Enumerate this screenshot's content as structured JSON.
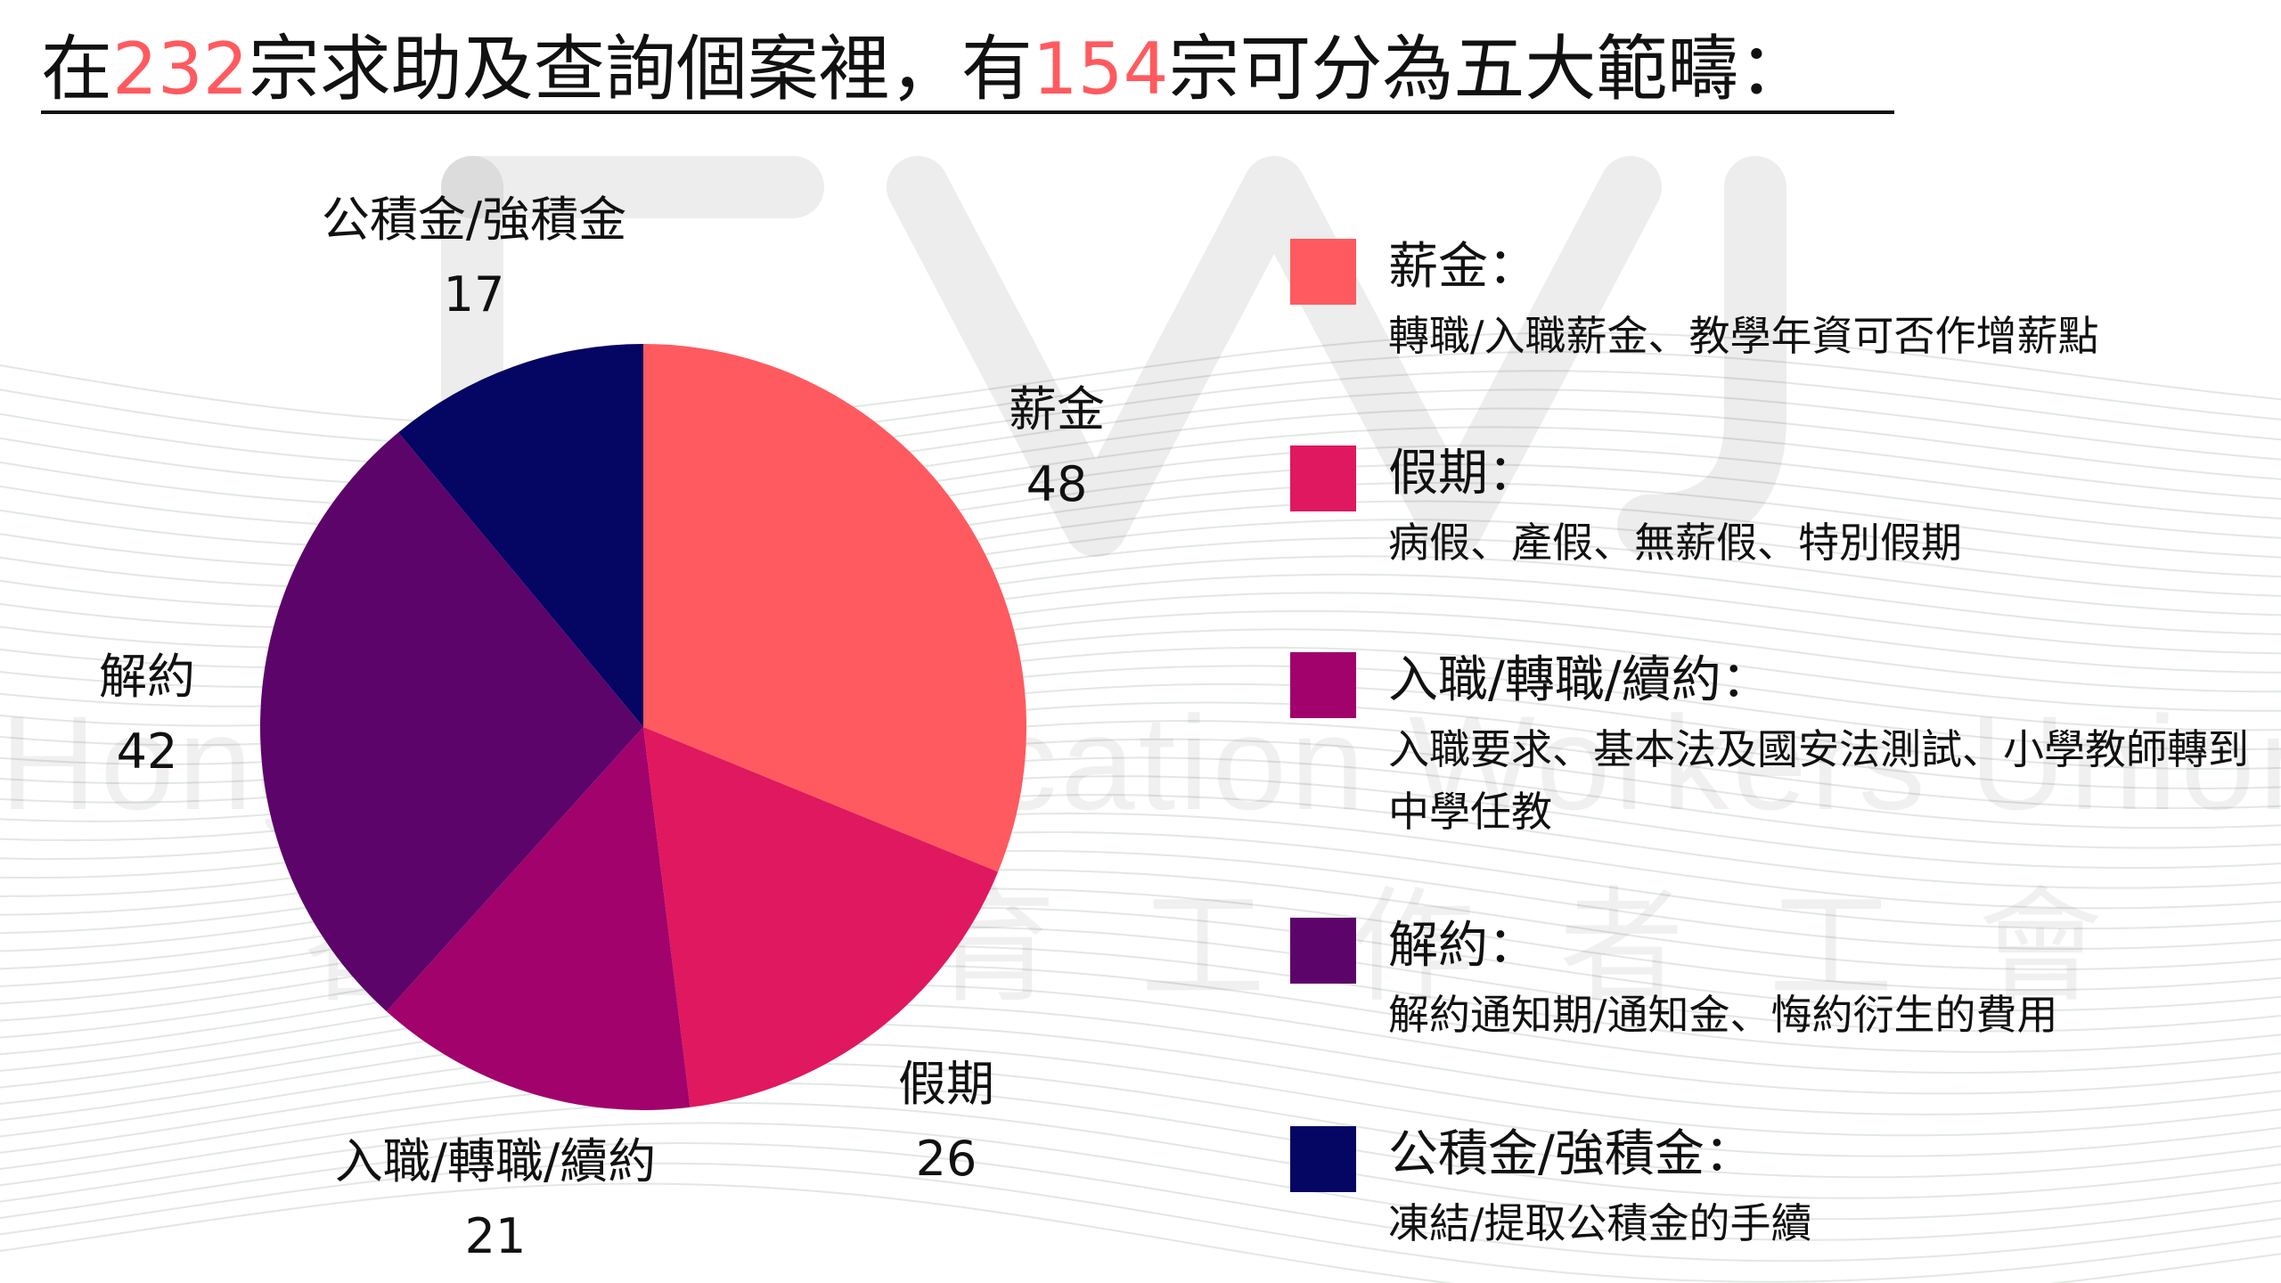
{
  "title": {
    "prefix": "在",
    "total": "232",
    "middle": "宗求助及查詢個案裡，有",
    "categorized": "154",
    "suffix": "宗可分為五大範疇："
  },
  "watermark": {
    "english": "Hong Kong Education Workers Union",
    "chinese": "香港教育工作者工會"
  },
  "chart_data": {
    "type": "pie",
    "categories": [
      "薪金",
      "假期",
      "入職/轉職/續約",
      "解約",
      "公積金/強積金"
    ],
    "values": [
      48,
      26,
      21,
      42,
      17
    ],
    "colors": [
      "#ff5a5f",
      "#e0185f",
      "#a1026b",
      "#5c046a",
      "#050563"
    ],
    "title": "",
    "legend_position": "right"
  },
  "pie_labels": [
    {
      "name": "薪金",
      "value": "48"
    },
    {
      "name": "假期",
      "value": "26"
    },
    {
      "name": "入職/轉職/續約",
      "value": "21"
    },
    {
      "name": "解約",
      "value": "42"
    },
    {
      "name": "公積金/強積金",
      "value": "17"
    }
  ],
  "legend": [
    {
      "title": "薪金：",
      "desc": "轉職/入職薪金、教學年資可否作增薪點",
      "color": "#ff5a5f"
    },
    {
      "title": "假期：",
      "desc": "病假、產假、無薪假、特別假期",
      "color": "#e0185f"
    },
    {
      "title": "入職/轉職/續約：",
      "desc": "入職要求、基本法及國安法測試、小學教師轉到中學任教",
      "color": "#a1026b"
    },
    {
      "title": "解約：",
      "desc": "解約通知期/通知金、悔約衍生的費用",
      "color": "#5c046a"
    },
    {
      "title": "公積金/強積金：",
      "desc": "凍結/提取公積金的手續",
      "color": "#050563"
    }
  ]
}
